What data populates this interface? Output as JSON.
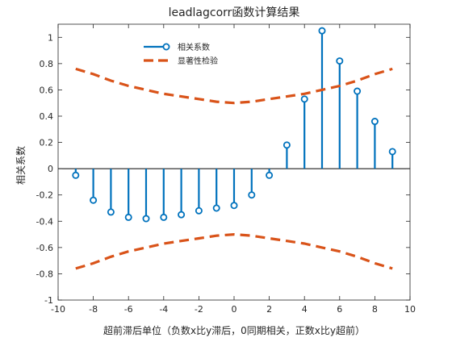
{
  "chart_data": {
    "type": "stem",
    "title": "leadlagcorr函数计算结果",
    "xlabel": "超前滞后单位（负数x比y滞后，0同期相关，正数x比y超前）",
    "ylabel": "相关系数",
    "xlim": [
      -10,
      10
    ],
    "ylim": [
      -1,
      1.1
    ],
    "xticks": [
      -10,
      -8,
      -6,
      -4,
      -2,
      0,
      2,
      4,
      6,
      8,
      10
    ],
    "yticks": [
      -1,
      -0.8,
      -0.6,
      -0.4,
      -0.2,
      0,
      0.2,
      0.4,
      0.6,
      0.8,
      1
    ],
    "ytick_labels": [
      "-1",
      "-0.8",
      "-0.6",
      "-0.4",
      "-0.2",
      "0",
      "0.2",
      "0.4",
      "0.6",
      "0.8",
      "1"
    ],
    "grid": false,
    "legend_position": "top-left",
    "series": [
      {
        "name": "相关系数",
        "kind": "stem",
        "color": "#0072BD",
        "x": [
          -9,
          -8,
          -7,
          -6,
          -5,
          -4,
          -3,
          -2,
          -1,
          0,
          1,
          2,
          3,
          4,
          5,
          6,
          7,
          8,
          9
        ],
        "y": [
          -0.05,
          -0.24,
          -0.33,
          -0.37,
          -0.38,
          -0.37,
          -0.35,
          -0.32,
          -0.3,
          -0.28,
          -0.2,
          -0.05,
          0.18,
          0.53,
          1.05,
          0.82,
          0.59,
          0.36,
          0.13
        ]
      },
      {
        "name": "显著性检验",
        "kind": "dashed",
        "color": "#D95319",
        "x": [
          -9,
          -8,
          -7,
          -6,
          -5,
          -4,
          -3,
          -2,
          -1,
          0,
          1,
          2,
          3,
          4,
          5,
          6,
          7,
          8,
          9
        ],
        "y": [
          0.76,
          0.72,
          0.67,
          0.63,
          0.6,
          0.57,
          0.55,
          0.53,
          0.51,
          0.5,
          0.51,
          0.53,
          0.55,
          0.57,
          0.6,
          0.63,
          0.67,
          0.72,
          0.76
        ]
      },
      {
        "kind": "dashed",
        "color": "#D95319",
        "x": [
          -9,
          -8,
          -7,
          -6,
          -5,
          -4,
          -3,
          -2,
          -1,
          0,
          1,
          2,
          3,
          4,
          5,
          6,
          7,
          8,
          9
        ],
        "y": [
          -0.76,
          -0.72,
          -0.67,
          -0.63,
          -0.6,
          -0.57,
          -0.55,
          -0.53,
          -0.51,
          -0.5,
          -0.51,
          -0.53,
          -0.55,
          -0.57,
          -0.6,
          -0.63,
          -0.67,
          -0.72,
          -0.76
        ]
      }
    ],
    "zero_line": 0
  }
}
